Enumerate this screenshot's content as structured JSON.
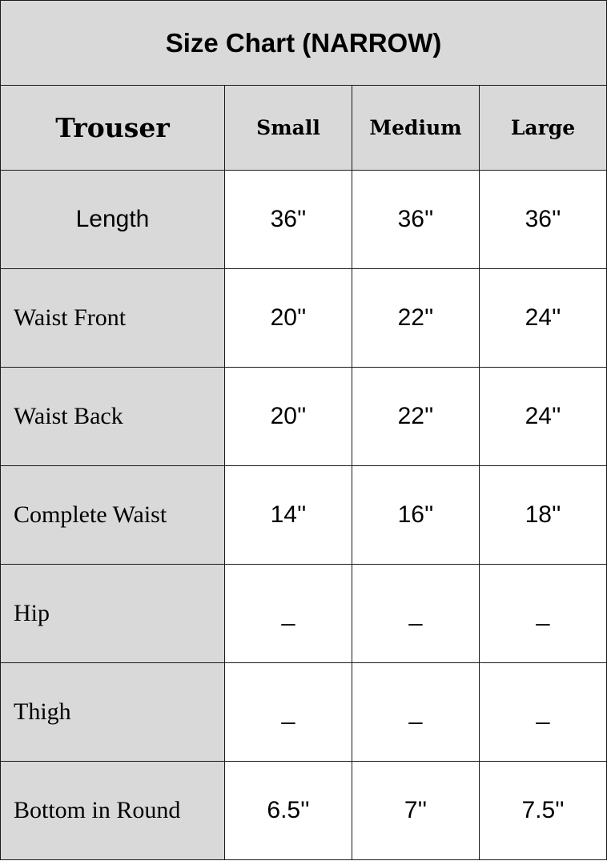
{
  "title": "Size Chart (NARROW)",
  "header": {
    "label": "Trouser",
    "sizes": [
      "Small",
      "Medium",
      "Large"
    ]
  },
  "rows": [
    {
      "label": "Length",
      "values": [
        "36''",
        "36''",
        "36''"
      ]
    },
    {
      "label": "Waist Front",
      "values": [
        "20''",
        "22''",
        "24''"
      ]
    },
    {
      "label": "Waist Back",
      "values": [
        "20''",
        "22''",
        "24''"
      ]
    },
    {
      "label": "Complete Waist",
      "values": [
        "14''",
        "16''",
        "18''"
      ]
    },
    {
      "label": "Hip",
      "values": [
        "_",
        "_",
        "_"
      ]
    },
    {
      "label": "Thigh",
      "values": [
        "_",
        "_",
        "_"
      ]
    },
    {
      "label": "Bottom in Round",
      "values": [
        "6.5''",
        "7''",
        "7.5''"
      ]
    }
  ]
}
